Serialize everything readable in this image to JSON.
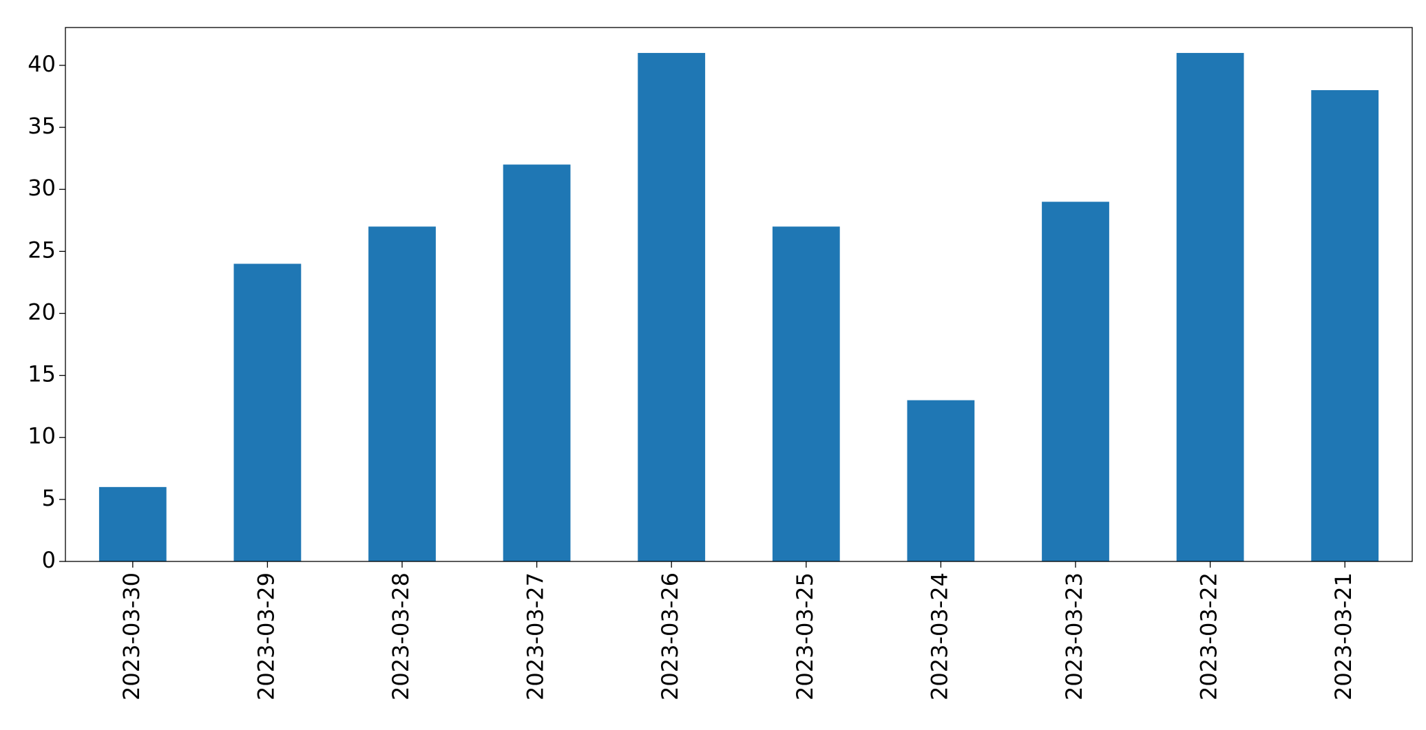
{
  "chart_data": {
    "type": "bar",
    "categories": [
      "2023-03-30",
      "2023-03-29",
      "2023-03-28",
      "2023-03-27",
      "2023-03-26",
      "2023-03-25",
      "2023-03-24",
      "2023-03-23",
      "2023-03-22",
      "2023-03-21"
    ],
    "values": [
      6,
      24,
      27,
      32,
      41,
      27,
      13,
      29,
      41,
      38
    ],
    "color": "#1f77b4",
    "ylim": [
      0,
      43.05
    ],
    "yticks": [
      0,
      5,
      10,
      15,
      20,
      25,
      30,
      35,
      40
    ],
    "grid": false
  }
}
